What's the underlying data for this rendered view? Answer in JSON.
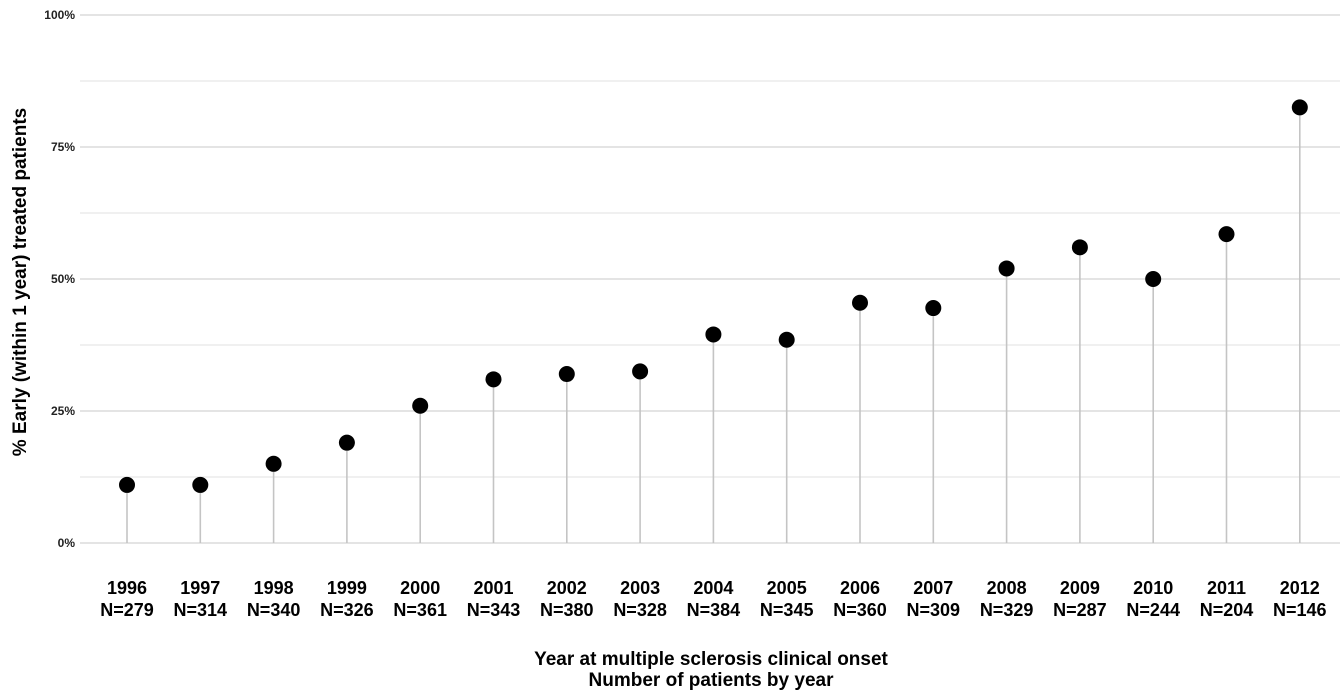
{
  "chart_data": {
    "type": "scatter",
    "style": "lollipop",
    "x": [
      "1996",
      "1997",
      "1998",
      "1999",
      "2000",
      "2001",
      "2002",
      "2003",
      "2004",
      "2005",
      "2006",
      "2007",
      "2008",
      "2009",
      "2010",
      "2011",
      "2012"
    ],
    "n_labels": [
      "N=279",
      "N=314",
      "N=340",
      "N=326",
      "N=361",
      "N=343",
      "N=380",
      "N=328",
      "N=384",
      "N=345",
      "N=360",
      "N=309",
      "N=329",
      "N=287",
      "N=244",
      "N=204",
      "N=146"
    ],
    "values": [
      11,
      11,
      15,
      19,
      26,
      31,
      32,
      32.5,
      39.5,
      38.5,
      45.5,
      44.5,
      52,
      56,
      50,
      58.5,
      82.5
    ],
    "ylim": [
      0,
      100
    ],
    "yticks": [
      0,
      25,
      50,
      75,
      100
    ],
    "ytick_labels": [
      "0%",
      "25%",
      "50%",
      "75%",
      "100%"
    ],
    "ylabel": "% Early (within 1 year) treated patients",
    "xlabel_line1": "Year at multiple sclerosis clinical onset",
    "xlabel_line2": "Number of patients by year",
    "grid": true,
    "legend": "none",
    "point_color": "#000000",
    "stem_color": "#c4c4c4"
  }
}
